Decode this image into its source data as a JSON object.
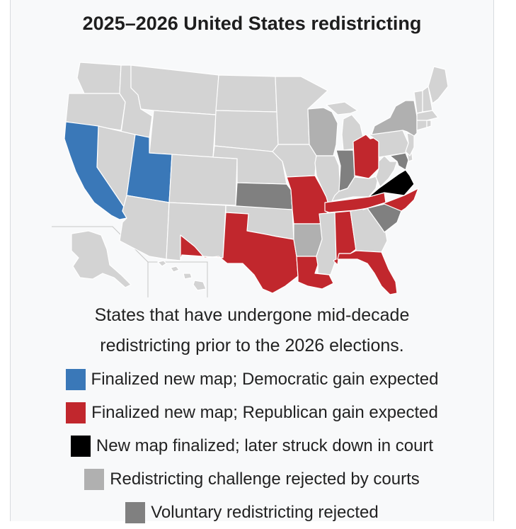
{
  "title": "2025–2026 United States redistricting",
  "caption_lines": [
    "States that have undergone mid-decade",
    "redistricting prior to the 2026 elections."
  ],
  "colors": {
    "democratic": "#3a78b8",
    "republican": "#c1272d",
    "struck_down": "#000000",
    "court_rejected": "#b0b0b0",
    "voluntary_rejected": "#808080",
    "unaffected": "#d3d3d3"
  },
  "legend": [
    {
      "key": "democratic",
      "label": "Finalized new map; Democratic gain expected",
      "color": "#3a78b8"
    },
    {
      "key": "republican",
      "label": "Finalized new map; Republican gain expected",
      "color": "#c1272d"
    },
    {
      "key": "struck_down",
      "label": "New map finalized; later struck down in court",
      "color": "#000000"
    },
    {
      "key": "court_rejected",
      "label": "Redistricting challenge rejected by courts",
      "color": "#b0b0b0"
    },
    {
      "key": "voluntary_rejected",
      "label": "Voluntary redistricting rejected",
      "color": "#808080"
    }
  ],
  "states": {
    "democratic": [
      "California",
      "Utah"
    ],
    "republican": [
      "Texas",
      "Missouri",
      "Ohio",
      "North Carolina",
      "Tennessee",
      "Louisiana",
      "Alabama",
      "Florida"
    ],
    "struck_down": [
      "Virginia"
    ],
    "court_rejected": [
      "Wisconsin",
      "New York",
      "Arkansas"
    ],
    "voluntary_rejected": [
      "Kansas",
      "Indiana",
      "South Carolina",
      "Maryland"
    ]
  }
}
